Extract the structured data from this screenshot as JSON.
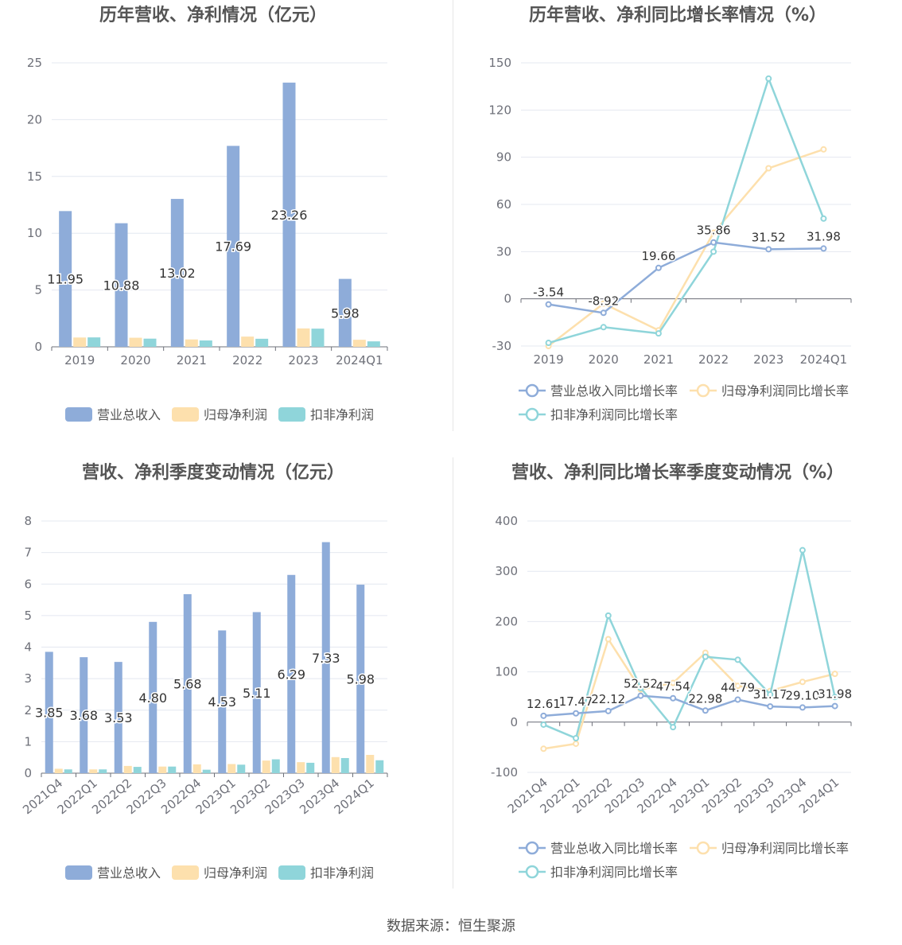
{
  "source_text": "数据来源：恒生聚源",
  "colors": {
    "revenue": "#8eacd9",
    "net_profit": "#fde0ad",
    "deducted": "#8fd5da",
    "grid": "#e4e8f0",
    "axis": "#6e7079",
    "text": "#555555",
    "title": "#555555"
  },
  "chart_data": [
    {
      "type": "bar",
      "title": "历年营收、净利情况（亿元）",
      "categories": [
        "2019",
        "2020",
        "2021",
        "2022",
        "2023",
        "2024Q1"
      ],
      "yticks": [
        "0",
        "5",
        "10",
        "15",
        "20",
        "25"
      ],
      "ylim": [
        0,
        25
      ],
      "series": [
        {
          "name": "营业总收入",
          "values": [
            11.95,
            10.88,
            13.02,
            17.69,
            23.26,
            5.98
          ],
          "labels": [
            "11.95",
            "10.88",
            "13.02",
            "17.69",
            "23.26",
            "5.98"
          ]
        },
        {
          "name": "归母净利润",
          "values": [
            0.82,
            0.8,
            0.65,
            0.9,
            1.62,
            0.62
          ]
        },
        {
          "name": "扣非净利润",
          "values": [
            0.83,
            0.72,
            0.56,
            0.71,
            1.6,
            0.48
          ]
        }
      ],
      "legend": "bottom"
    },
    {
      "type": "line",
      "title": "历年营收、净利同比增长率情况（%）",
      "categories": [
        "2019",
        "2020",
        "2021",
        "2022",
        "2023",
        "2024Q1"
      ],
      "yticks": [
        "-30",
        "0",
        "30",
        "60",
        "90",
        "120",
        "150"
      ],
      "ylim": [
        -30,
        150
      ],
      "series": [
        {
          "name": "营业总收入同比增长率",
          "values": [
            -3.54,
            -8.92,
            19.66,
            35.86,
            31.52,
            31.98
          ],
          "labels": [
            "-3.54",
            "-8.92",
            "19.66",
            "35.86",
            "31.52",
            "31.98"
          ]
        },
        {
          "name": "归母净利润同比增长率",
          "values": [
            -30,
            -3,
            -20,
            42,
            83,
            95
          ]
        },
        {
          "name": "扣非净利润同比增长率",
          "values": [
            -28,
            -18,
            -22,
            30,
            140,
            51
          ]
        }
      ],
      "legend": "bottom"
    },
    {
      "type": "bar",
      "title": "营收、净利季度变动情况（亿元）",
      "categories": [
        "2021Q4",
        "2022Q1",
        "2022Q2",
        "2022Q3",
        "2022Q4",
        "2023Q1",
        "2023Q2",
        "2023Q3",
        "2023Q4",
        "2024Q1"
      ],
      "yticks": [
        "0",
        "1",
        "2",
        "3",
        "4",
        "5",
        "6",
        "7",
        "8"
      ],
      "ylim": [
        0,
        8
      ],
      "series": [
        {
          "name": "营业总收入",
          "values": [
            3.85,
            3.68,
            3.53,
            4.8,
            5.68,
            4.53,
            5.11,
            6.29,
            7.33,
            5.98
          ],
          "labels": [
            "3.85",
            "3.68",
            "3.53",
            "4.80",
            "5.68",
            "4.53",
            "5.11",
            "6.29",
            "7.33",
            "5.98"
          ]
        },
        {
          "name": "归母净利润",
          "values": [
            0.14,
            0.12,
            0.23,
            0.21,
            0.28,
            0.29,
            0.4,
            0.35,
            0.51,
            0.58
          ]
        },
        {
          "name": "扣非净利润",
          "values": [
            0.12,
            0.12,
            0.2,
            0.21,
            0.11,
            0.27,
            0.44,
            0.33,
            0.48,
            0.41
          ]
        }
      ],
      "legend": "bottom"
    },
    {
      "type": "line",
      "title": "营收、净利同比增长率季度变动情况（%）",
      "categories": [
        "2021Q4",
        "2022Q1",
        "2022Q2",
        "2022Q3",
        "2022Q4",
        "2023Q1",
        "2023Q2",
        "2023Q3",
        "2023Q4",
        "2024Q1"
      ],
      "yticks": [
        "-100",
        "0",
        "100",
        "200",
        "300",
        "400"
      ],
      "ylim": [
        -100,
        400
      ],
      "series": [
        {
          "name": "营业总收入同比增长率",
          "values": [
            12.61,
            17.47,
            22.12,
            52.52,
            47.54,
            22.98,
            44.79,
            31.17,
            29.1,
            31.98
          ],
          "labels": [
            "12.61",
            "17.47",
            "22.12",
            "52.52",
            "47.54",
            "22.98",
            "44.79",
            "31.17",
            "29.10",
            "31.98"
          ]
        },
        {
          "name": "归母净利润同比增长率",
          "values": [
            -53,
            -43,
            165,
            65,
            78,
            138,
            72,
            62,
            80,
            96
          ]
        },
        {
          "name": "扣非净利润同比增长率",
          "values": [
            -5,
            -32,
            212,
            68,
            -10,
            130,
            124,
            55,
            342,
            50
          ]
        }
      ],
      "legend": "bottom"
    }
  ]
}
